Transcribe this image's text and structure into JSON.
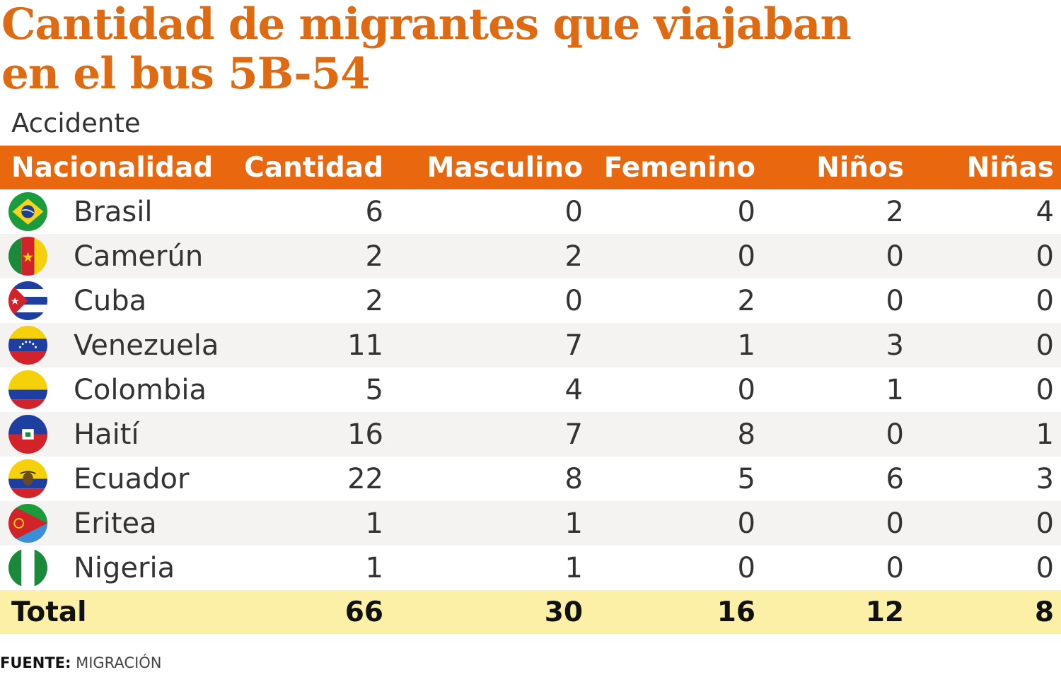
{
  "title_line1": "Cantidad de migrantes que viajaban",
  "title_line2": "en el bus 5B-54",
  "subtitle": "Accidente",
  "source_label": "FUENTE:",
  "source_value": "MIGRACIÓN",
  "colors": {
    "accent": "#e9680f",
    "title": "#e06a12",
    "total_row": "#fbf0a6",
    "alt_row": "#f4f3f1"
  },
  "chart_data": {
    "type": "table",
    "columns": [
      "Nacionalidad",
      "Cantidad",
      "Masculino",
      "Femenino",
      "Niños",
      "Niñas"
    ],
    "rows": [
      {
        "country": "Brasil",
        "flag_icon": "brazil-flag-icon",
        "values": [
          6,
          0,
          0,
          2,
          4
        ]
      },
      {
        "country": "Camerún",
        "flag_icon": "cameroon-flag-icon",
        "values": [
          2,
          2,
          0,
          0,
          0
        ]
      },
      {
        "country": "Cuba",
        "flag_icon": "cuba-flag-icon",
        "values": [
          2,
          0,
          2,
          0,
          0
        ]
      },
      {
        "country": "Venezuela",
        "flag_icon": "venezuela-flag-icon",
        "values": [
          11,
          7,
          1,
          3,
          0
        ]
      },
      {
        "country": "Colombia",
        "flag_icon": "colombia-flag-icon",
        "values": [
          5,
          4,
          0,
          1,
          0
        ]
      },
      {
        "country": "Haití",
        "flag_icon": "haiti-flag-icon",
        "values": [
          16,
          7,
          8,
          0,
          1
        ]
      },
      {
        "country": "Ecuador",
        "flag_icon": "ecuador-flag-icon",
        "values": [
          22,
          8,
          5,
          6,
          3
        ]
      },
      {
        "country": "Eritea",
        "flag_icon": "eritrea-flag-icon",
        "values": [
          1,
          1,
          0,
          0,
          0
        ]
      },
      {
        "country": "Nigeria",
        "flag_icon": "nigeria-flag-icon",
        "values": [
          1,
          1,
          0,
          0,
          0
        ]
      }
    ],
    "total": {
      "label": "Total",
      "values": [
        66,
        30,
        16,
        12,
        8
      ]
    }
  }
}
